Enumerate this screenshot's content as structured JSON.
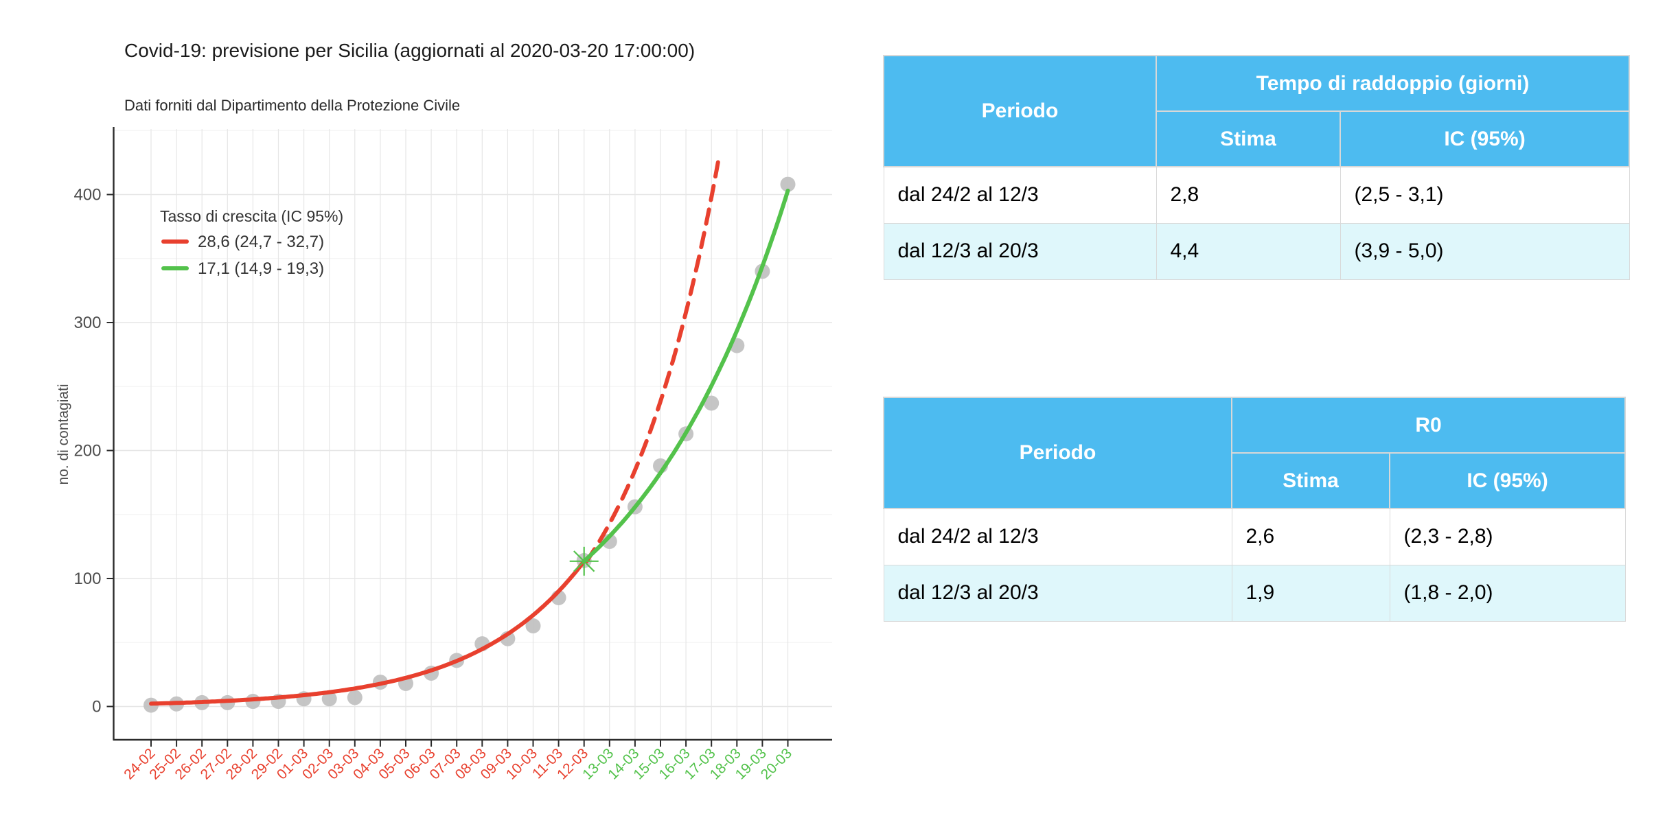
{
  "chart": {
    "title": "Covid-19: previsione per Sicilia (aggiornati al 2020-03-20 17:00:00)",
    "subtitle": "Dati forniti dal Dipartimento della Protezione Civile",
    "y_axis_title": "no. di contagiati",
    "legend": {
      "title": "Tasso di crescita (IC 95%)",
      "items": [
        {
          "label": "28,6 (24,7 - 32,7)",
          "color": "#e8402e"
        },
        {
          "label": "17,1 (14,9 - 19,3)",
          "color": "#53c24b"
        }
      ]
    },
    "colors": {
      "red_fit": "#e8402e",
      "green_fit": "#53c24b",
      "point_fill": "#bfbfbf",
      "grid_major": "#e6e6e6",
      "grid_minor": "#f2f2f2",
      "axis": "#2b2b2b",
      "tick_text": "#4d4d4d",
      "legend_text": "#333333"
    }
  },
  "chart_data": {
    "type": "scatter",
    "title": "Covid-19: previsione per Sicilia (aggiornati al 2020-03-20 17:00:00)",
    "xlabel": "",
    "ylabel": "no. di contagiati",
    "x": [
      "24-02",
      "25-02",
      "26-02",
      "27-02",
      "28-02",
      "29-02",
      "01-03",
      "02-03",
      "03-03",
      "04-03",
      "05-03",
      "06-03",
      "07-03",
      "08-03",
      "09-03",
      "10-03",
      "11-03",
      "12-03",
      "13-03",
      "14-03",
      "15-03",
      "16-03",
      "17-03",
      "18-03",
      "19-03",
      "20-03"
    ],
    "values": [
      1,
      2,
      3,
      3,
      4,
      4,
      6,
      6,
      7,
      19,
      18,
      26,
      36,
      49,
      53,
      63,
      85,
      114,
      129,
      156,
      188,
      213,
      237,
      282,
      340,
      408
    ],
    "y_ticks": [
      0,
      100,
      200,
      300,
      400
    ],
    "ylim": [
      0,
      451
    ],
    "x_label_red_count": 18,
    "grid": true,
    "legend_position": "top-left-inside",
    "fits": [
      {
        "name": "fit-period1-solid",
        "style": "solid",
        "colorKey": "red_fit",
        "t_start": 0,
        "t_end": 17,
        "v_start": 2.2,
        "v_end": 113.5
      },
      {
        "name": "fit-period1-extrapolation-dashed",
        "style": "dashed",
        "colorKey": "red_fit",
        "t_start": 17.1,
        "t_end": 22.35,
        "v_start": 113.5,
        "rate": 0.256
      },
      {
        "name": "fit-period2-solid",
        "style": "solid",
        "colorKey": "green_fit",
        "t_start": 17,
        "t_end": 25,
        "v_start": 113.5,
        "v_end": 403
      }
    ],
    "changepoint": {
      "x_label": "12-03",
      "t": 17,
      "v": 113.5,
      "marker": "asterisk"
    }
  },
  "tables": [
    {
      "col1_header": "Periodo",
      "group_header": "Tempo di raddoppio (giorni)",
      "sub_headers": [
        "Stima",
        "IC (95%)"
      ],
      "rows": [
        {
          "periodo": "dal 24/2 al 12/3",
          "stima": "2,8",
          "ic": "(2,5 - 3,1)"
        },
        {
          "periodo": "dal 12/3 al 20/3",
          "stima": "4,4",
          "ic": "(3,9 - 5,0)"
        }
      ]
    },
    {
      "col1_header": "Periodo",
      "group_header": "R0",
      "sub_headers": [
        "Stima",
        "IC (95%)"
      ],
      "rows": [
        {
          "periodo": "dal 24/2 al 12/3",
          "stima": "2,6",
          "ic": "(2,3 - 2,8)"
        },
        {
          "periodo": "dal 12/3 al 20/3",
          "stima": "1,9",
          "ic": "(1,8 - 2,0)"
        }
      ]
    }
  ]
}
